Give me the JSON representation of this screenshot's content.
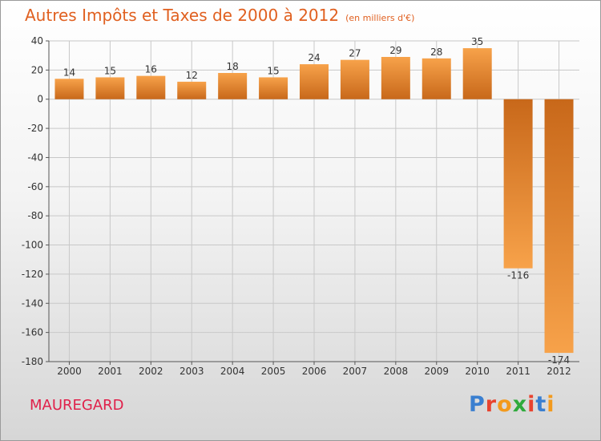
{
  "header": {
    "title": "Autres Impôts et Taxes de 2000 à 2012",
    "unit": "(en milliers d'€)"
  },
  "commune": "MAUREGARD",
  "logo": {
    "text": "Proxiti",
    "letter_colors": [
      "#3a7fd0",
      "#e8432f",
      "#f39a1c",
      "#2faa3c",
      "#e8432f",
      "#3a7fd0",
      "#f39a1c"
    ]
  },
  "colors": {
    "title": "#e06020",
    "commune": "#e0204a",
    "bar_light": "#f7a24a",
    "bar_dark": "#c8681a",
    "grid": "#c8c8c8",
    "axis": "#555555",
    "text": "#333333"
  },
  "chart_data": {
    "type": "bar",
    "categories": [
      "2000",
      "2001",
      "2002",
      "2003",
      "2004",
      "2005",
      "2006",
      "2007",
      "2008",
      "2009",
      "2010",
      "2011",
      "2012"
    ],
    "values": [
      14,
      15,
      16,
      12,
      18,
      15,
      24,
      27,
      29,
      28,
      35,
      -116,
      -174
    ],
    "ylim": [
      -180,
      40
    ],
    "yticks": [
      40,
      20,
      0,
      -20,
      -40,
      -60,
      -80,
      -100,
      -120,
      -140,
      -160,
      -180
    ],
    "grid": true,
    "title": "Autres Impôts et Taxes de 2000 à 2012",
    "ylabel": "",
    "xlabel": ""
  }
}
